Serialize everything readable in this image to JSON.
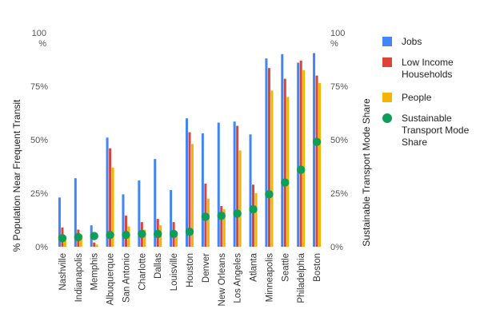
{
  "chart_data": {
    "type": "bar",
    "title": "",
    "xlabel": "",
    "ylabel": "% Population Near Frequent Transit",
    "y2label": "Sustainable Transport Mode Share",
    "ylim": [
      0,
      100
    ],
    "y2lim": [
      0,
      100
    ],
    "yticks": [
      "0%",
      "25%",
      "50%",
      "75%",
      "100\n%"
    ],
    "y2ticks": [
      "0%",
      "25%",
      "50%",
      "75%",
      "100\n%"
    ],
    "ytick_values": [
      0,
      25,
      50,
      75,
      100
    ],
    "grid": false,
    "legend_position": "right",
    "categories": [
      "Nashville",
      "Indianapolis",
      "Memphis",
      "Albuquerque",
      "San Antonio",
      "Charlotte",
      "Dallas",
      "Louisville",
      "Houston",
      "Denver",
      "New Orleans",
      "Los Angeles",
      "Atlanta",
      "Minneapolis",
      "Seattle",
      "Philadelphia",
      "Boston"
    ],
    "series": [
      {
        "name": "Jobs",
        "type": "bar",
        "color": "#4285F4",
        "values": [
          23,
          32,
          10,
          51,
          24.5,
          31,
          41,
          26.5,
          60,
          53,
          58,
          58.5,
          52.5,
          88,
          90,
          86,
          90.5
        ]
      },
      {
        "name": "Low Income Households",
        "type": "bar",
        "color": "#DB4437",
        "values": [
          9,
          8,
          2,
          46,
          14.5,
          11.5,
          13,
          11.5,
          53.5,
          29.5,
          19,
          56.5,
          29,
          83.5,
          78.5,
          87,
          80
        ]
      },
      {
        "name": "People",
        "type": "bar",
        "color": "#F4B400",
        "values": [
          5,
          5.5,
          1,
          37,
          9.5,
          8,
          10,
          7,
          48,
          22.5,
          17.5,
          45,
          25,
          73,
          70,
          82.5,
          76.5
        ]
      },
      {
        "name": "Sustainable Transport Mode Share",
        "type": "scatter",
        "color": "#0F9D58",
        "values": [
          4,
          4.5,
          5,
          5.5,
          5.5,
          6,
          6,
          6,
          7,
          14,
          14.5,
          15.5,
          17.5,
          24.5,
          30,
          36,
          49
        ]
      }
    ]
  }
}
